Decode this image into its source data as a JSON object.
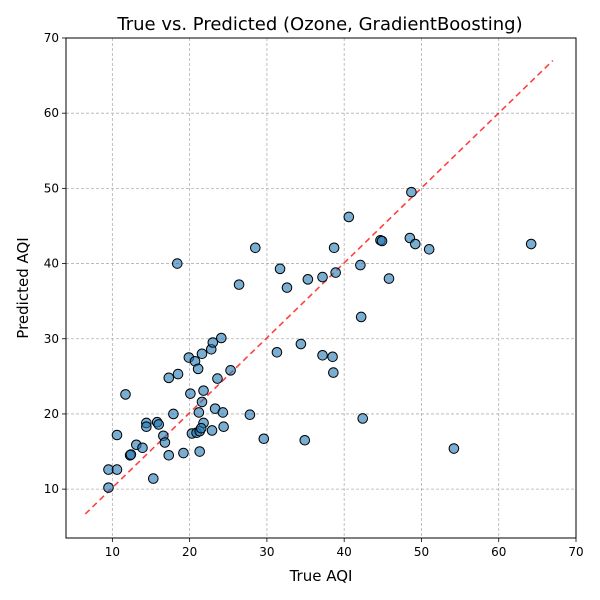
{
  "chart_data": {
    "type": "scatter",
    "title": "True vs. Predicted (Ozone, GradientBoosting)",
    "xlabel": "True AQI",
    "ylabel": "Predicted AQI",
    "xlim": [
      4,
      70
    ],
    "ylim": [
      3.5,
      70
    ],
    "xticks": [
      10,
      20,
      30,
      40,
      50,
      60,
      70
    ],
    "yticks": [
      10,
      20,
      30,
      40,
      50,
      60,
      70
    ],
    "grid": true,
    "reference_line": {
      "from": [
        6.5,
        6.7
      ],
      "to": [
        67,
        67
      ],
      "color": "#ff0000",
      "style": "dashed"
    },
    "series": [
      {
        "color": "#1f77b4",
        "points": [
          [
            9.5,
            10.2
          ],
          [
            9.5,
            12.6
          ],
          [
            10.6,
            12.6
          ],
          [
            10.6,
            17.2
          ],
          [
            11.7,
            22.6
          ],
          [
            12.3,
            14.5
          ],
          [
            12.4,
            14.6
          ],
          [
            13.1,
            15.9
          ],
          [
            13.9,
            15.5
          ],
          [
            14.4,
            18.8
          ],
          [
            14.4,
            18.3
          ],
          [
            15.3,
            11.4
          ],
          [
            15.8,
            18.9
          ],
          [
            16.0,
            18.6
          ],
          [
            16.6,
            17.1
          ],
          [
            16.8,
            16.2
          ],
          [
            17.3,
            14.5
          ],
          [
            17.3,
            24.8
          ],
          [
            17.9,
            20.0
          ],
          [
            18.4,
            40.0
          ],
          [
            18.5,
            25.3
          ],
          [
            19.2,
            14.8
          ],
          [
            19.9,
            27.5
          ],
          [
            20.1,
            22.7
          ],
          [
            20.3,
            17.4
          ],
          [
            20.7,
            27.0
          ],
          [
            20.9,
            17.5
          ],
          [
            21.1,
            26.0
          ],
          [
            21.2,
            20.2
          ],
          [
            21.3,
            15.0
          ],
          [
            21.3,
            17.7
          ],
          [
            21.6,
            21.6
          ],
          [
            21.6,
            28.0
          ],
          [
            21.8,
            23.1
          ],
          [
            21.8,
            18.8
          ],
          [
            21.5,
            18.1
          ],
          [
            22.8,
            28.6
          ],
          [
            23.0,
            29.5
          ],
          [
            22.9,
            17.8
          ],
          [
            23.3,
            20.7
          ],
          [
            23.6,
            24.7
          ],
          [
            24.1,
            30.1
          ],
          [
            24.3,
            20.2
          ],
          [
            24.4,
            18.3
          ],
          [
            25.3,
            25.8
          ],
          [
            26.4,
            37.2
          ],
          [
            27.8,
            19.9
          ],
          [
            28.5,
            42.1
          ],
          [
            29.6,
            16.7
          ],
          [
            31.3,
            28.2
          ],
          [
            31.7,
            39.3
          ],
          [
            32.6,
            36.8
          ],
          [
            34.4,
            29.3
          ],
          [
            34.9,
            16.5
          ],
          [
            35.3,
            37.9
          ],
          [
            37.2,
            38.2
          ],
          [
            37.2,
            27.8
          ],
          [
            38.5,
            27.6
          ],
          [
            38.6,
            25.5
          ],
          [
            38.7,
            42.1
          ],
          [
            38.9,
            38.8
          ],
          [
            40.6,
            46.2
          ],
          [
            42.1,
            39.8
          ],
          [
            42.2,
            32.9
          ],
          [
            42.4,
            19.4
          ],
          [
            44.7,
            43.1
          ],
          [
            44.9,
            43.0
          ],
          [
            45.8,
            38.0
          ],
          [
            48.5,
            43.4
          ],
          [
            48.7,
            49.5
          ],
          [
            49.2,
            42.6
          ],
          [
            51.0,
            41.9
          ],
          [
            54.2,
            15.4
          ],
          [
            64.2,
            42.6
          ]
        ]
      }
    ]
  }
}
